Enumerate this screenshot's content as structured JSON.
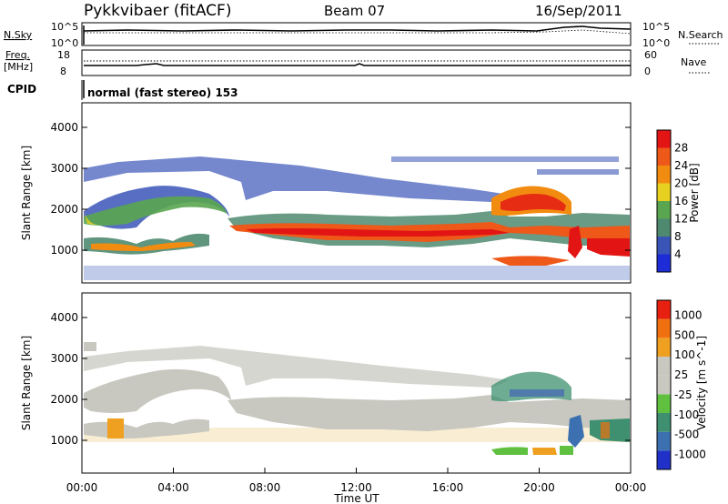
{
  "header": {
    "station": "Pykkvibaer (fitACF)",
    "beam": "Beam 07",
    "date": "16/Sep/2011"
  },
  "panels": {
    "nsky": {
      "left_label": "N.Sky",
      "right_label": "N.Search",
      "left_ticks": [
        "10^5",
        "10^0"
      ],
      "right_ticks": [
        "10^5",
        "10^0"
      ]
    },
    "freq": {
      "left_label_1": "Freq.",
      "left_label_2": "[MHz]",
      "right_label": "Nave",
      "left_ticks": [
        "18",
        "8"
      ],
      "right_ticks": [
        "60",
        "0"
      ]
    },
    "cpid": {
      "label": "CPID",
      "text": "normal (fast stereo) 153"
    }
  },
  "chart_data": [
    {
      "type": "heatmap",
      "title": "",
      "ylabel": "Slant Range [km]",
      "xlabel": "",
      "ylim": [
        200,
        4600
      ],
      "yticks": [
        1000,
        2000,
        3000,
        4000
      ],
      "colorbar": {
        "label": "Power [dB]",
        "ticks": [
          "4",
          "8",
          "12",
          "16",
          "20",
          "24",
          "28"
        ],
        "colors": [
          "#1e2cd8",
          "#3a55b8",
          "#4f8a70",
          "#5aa650",
          "#e8d020",
          "#f28c10",
          "#ee5818",
          "#e21414"
        ]
      }
    },
    {
      "type": "heatmap",
      "title": "",
      "ylabel": "Slant Range [km]",
      "xlabel": "Time UT",
      "ylim": [
        200,
        4600
      ],
      "yticks": [
        1000,
        2000,
        3000,
        4000
      ],
      "xticks": [
        "00:00",
        "04:00",
        "08:00",
        "12:00",
        "16:00",
        "20:00",
        "00:00"
      ],
      "colorbar": {
        "label": "Velocity [m s^-1]",
        "ticks": [
          "1000",
          "500",
          "100",
          "25",
          "-25",
          "-100",
          "-500",
          "-1000"
        ],
        "colors": [
          "#2030c8",
          "#3c70b0",
          "#3e9070",
          "#60c040",
          "#c8c8c0",
          "#c8c8c0",
          "#f0a020",
          "#f07010",
          "#e82010"
        ]
      }
    }
  ]
}
